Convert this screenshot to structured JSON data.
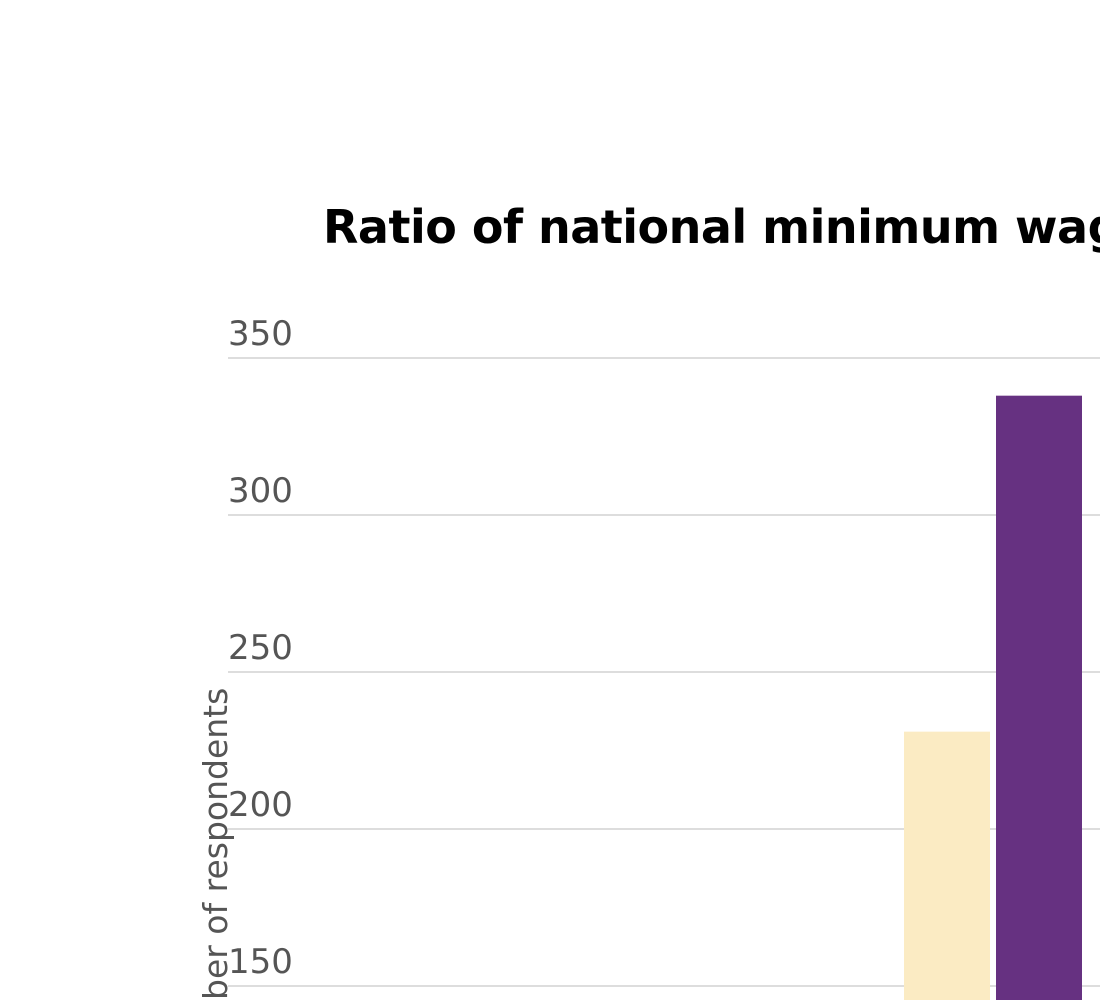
{
  "chart_data": {
    "type": "bar",
    "title": "Ratio of national minimum wag",
    "ylabel": "ber of respondents",
    "xlabel": "",
    "ylim": [
      150,
      350
    ],
    "yticks": [
      350,
      300,
      250,
      200,
      150
    ],
    "grid": true,
    "series": [
      {
        "color": "#fbebc3",
        "values": [
          231
        ]
      },
      {
        "color": "#663181",
        "values": [
          338
        ]
      }
    ]
  },
  "colors": {
    "gridline": "#dddddd",
    "tick_text": "#555555",
    "title_text": "#000000"
  }
}
